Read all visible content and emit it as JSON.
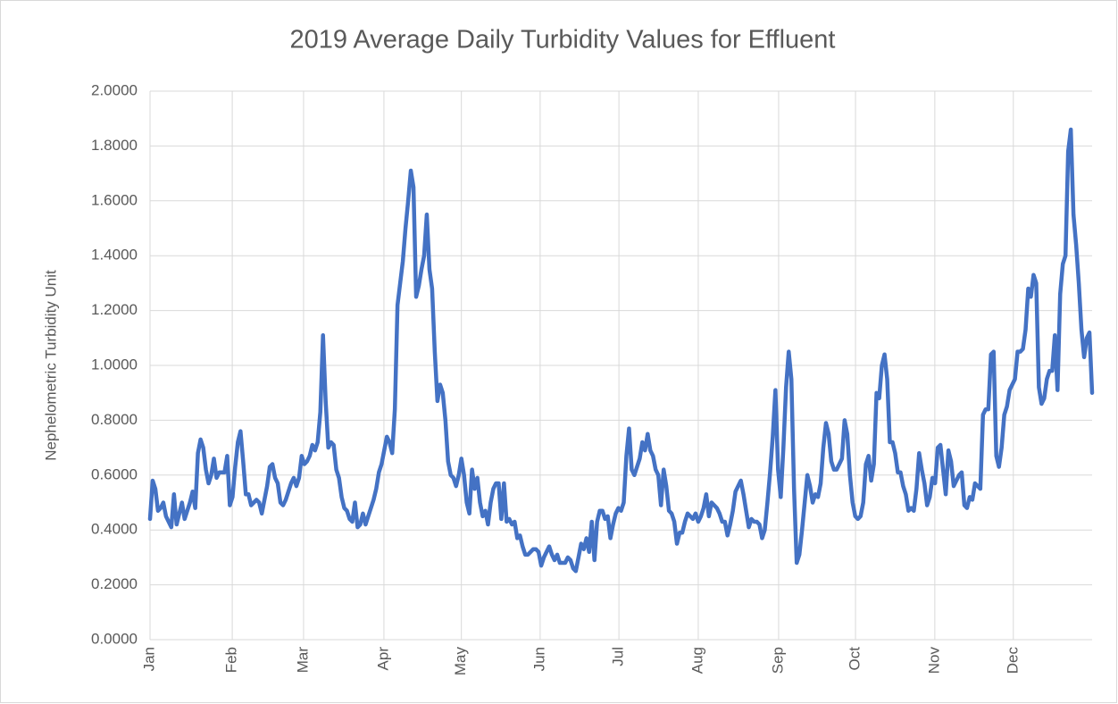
{
  "chart_data": {
    "type": "line",
    "title": "2019 Average Daily Turbidity Values for Effluent",
    "y_label": "Nephelometric Turbidity Unit",
    "xlim": [
      0,
      354
    ],
    "xticks": [
      {
        "value": 0,
        "label": "Jan"
      },
      {
        "value": 30.9,
        "label": "Feb"
      },
      {
        "value": 57.7,
        "label": "Mar"
      },
      {
        "value": 87.9,
        "label": "Apr"
      },
      {
        "value": 117,
        "label": "May"
      },
      {
        "value": 146.6,
        "label": "Jun"
      },
      {
        "value": 176.2,
        "label": "Jul"
      },
      {
        "value": 206,
        "label": "Aug"
      },
      {
        "value": 236.2,
        "label": "Sep"
      },
      {
        "value": 265.1,
        "label": "Oct"
      },
      {
        "value": 294.9,
        "label": "Nov"
      },
      {
        "value": 324.4,
        "label": "Dec"
      }
    ],
    "ylim": [
      0,
      2
    ],
    "yticks": [
      {
        "value": 0,
        "label": "0.0000"
      },
      {
        "value": 0.2,
        "label": "0.2000"
      },
      {
        "value": 0.4,
        "label": "0.4000"
      },
      {
        "value": 0.6,
        "label": "0.6000"
      },
      {
        "value": 0.8,
        "label": "0.8000"
      },
      {
        "value": 1,
        "label": "1.0000"
      },
      {
        "value": 1.2,
        "label": "1.2000"
      },
      {
        "value": 1.4,
        "label": "1.4000"
      },
      {
        "value": 1.6,
        "label": "1.6000"
      },
      {
        "value": 1.8,
        "label": "1.8000"
      },
      {
        "value": 2,
        "label": "2.0000"
      }
    ],
    "grid": true,
    "color": "#4472c4",
    "values": [
      0.44,
      0.58,
      0.55,
      0.47,
      0.48,
      0.5,
      0.45,
      0.43,
      0.41,
      0.53,
      0.42,
      0.46,
      0.5,
      0.44,
      0.47,
      0.5,
      0.54,
      0.48,
      0.68,
      0.73,
      0.7,
      0.62,
      0.57,
      0.6,
      0.66,
      0.59,
      0.61,
      0.61,
      0.61,
      0.67,
      0.49,
      0.52,
      0.63,
      0.72,
      0.76,
      0.65,
      0.53,
      0.53,
      0.49,
      0.5,
      0.51,
      0.5,
      0.46,
      0.51,
      0.56,
      0.63,
      0.64,
      0.59,
      0.57,
      0.5,
      0.49,
      0.51,
      0.54,
      0.57,
      0.59,
      0.56,
      0.59,
      0.67,
      0.64,
      0.65,
      0.67,
      0.71,
      0.69,
      0.72,
      0.83,
      1.11,
      0.87,
      0.7,
      0.72,
      0.71,
      0.62,
      0.59,
      0.52,
      0.48,
      0.47,
      0.44,
      0.43,
      0.5,
      0.41,
      0.42,
      0.46,
      0.42,
      0.45,
      0.48,
      0.51,
      0.55,
      0.61,
      0.64,
      0.69,
      0.74,
      0.72,
      0.68,
      0.84,
      1.22,
      1.3,
      1.38,
      1.5,
      1.6,
      1.71,
      1.65,
      1.25,
      1.29,
      1.35,
      1.4,
      1.55,
      1.35,
      1.28,
      1.05,
      0.87,
      0.93,
      0.9,
      0.8,
      0.65,
      0.6,
      0.59,
      0.56,
      0.6,
      0.66,
      0.6,
      0.5,
      0.46,
      0.62,
      0.55,
      0.59,
      0.5,
      0.45,
      0.47,
      0.42,
      0.5,
      0.55,
      0.57,
      0.57,
      0.44,
      0.57,
      0.43,
      0.44,
      0.42,
      0.43,
      0.37,
      0.38,
      0.34,
      0.31,
      0.31,
      0.32,
      0.33,
      0.33,
      0.32,
      0.27,
      0.3,
      0.32,
      0.34,
      0.31,
      0.29,
      0.31,
      0.28,
      0.28,
      0.28,
      0.3,
      0.29,
      0.26,
      0.25,
      0.3,
      0.35,
      0.33,
      0.37,
      0.32,
      0.43,
      0.29,
      0.43,
      0.47,
      0.47,
      0.44,
      0.45,
      0.37,
      0.42,
      0.46,
      0.48,
      0.47,
      0.5,
      0.67,
      0.77,
      0.62,
      0.6,
      0.63,
      0.66,
      0.72,
      0.69,
      0.75,
      0.69,
      0.67,
      0.62,
      0.6,
      0.49,
      0.62,
      0.56,
      0.47,
      0.46,
      0.43,
      0.35,
      0.39,
      0.39,
      0.43,
      0.46,
      0.45,
      0.44,
      0.46,
      0.43,
      0.45,
      0.48,
      0.53,
      0.45,
      0.5,
      0.49,
      0.48,
      0.46,
      0.43,
      0.43,
      0.38,
      0.42,
      0.47,
      0.54,
      0.56,
      0.58,
      0.53,
      0.47,
      0.41,
      0.44,
      0.43,
      0.43,
      0.42,
      0.37,
      0.4,
      0.5,
      0.61,
      0.74,
      0.91,
      0.62,
      0.52,
      0.7,
      0.92,
      1.05,
      0.95,
      0.55,
      0.28,
      0.31,
      0.4,
      0.5,
      0.6,
      0.56,
      0.5,
      0.53,
      0.52,
      0.57,
      0.7,
      0.79,
      0.75,
      0.65,
      0.62,
      0.62,
      0.64,
      0.66,
      0.8,
      0.75,
      0.6,
      0.5,
      0.45,
      0.44,
      0.45,
      0.5,
      0.64,
      0.67,
      0.58,
      0.64,
      0.9,
      0.88,
      1.0,
      1.04,
      0.95,
      0.72,
      0.72,
      0.68,
      0.61,
      0.61,
      0.56,
      0.53,
      0.47,
      0.48,
      0.47,
      0.55,
      0.68,
      0.62,
      0.57,
      0.49,
      0.52,
      0.59,
      0.57,
      0.7,
      0.71,
      0.62,
      0.53,
      0.69,
      0.65,
      0.56,
      0.58,
      0.6,
      0.61,
      0.49,
      0.48,
      0.52,
      0.51,
      0.57,
      0.56,
      0.55,
      0.82,
      0.84,
      0.84,
      1.04,
      1.05,
      0.67,
      0.63,
      0.7,
      0.82,
      0.85,
      0.91,
      0.93,
      0.95,
      1.05,
      1.05,
      1.06,
      1.13,
      1.28,
      1.25,
      1.33,
      1.3,
      0.92,
      0.86,
      0.88,
      0.95,
      0.98,
      0.98,
      1.11,
      0.91,
      1.26,
      1.37,
      1.4,
      1.78,
      1.86,
      1.55,
      1.44,
      1.3,
      1.13,
      1.03,
      1.1,
      1.12,
      0.9
    ]
  }
}
